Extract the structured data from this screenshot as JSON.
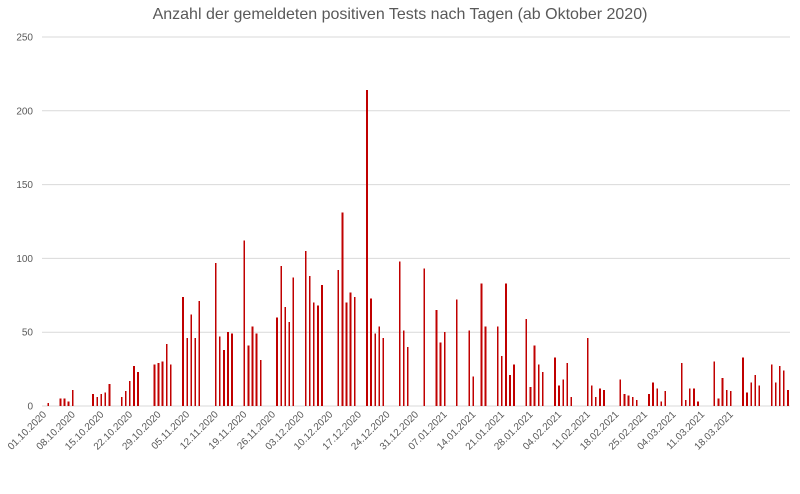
{
  "chart_data": {
    "type": "bar",
    "title": "Anzahl der gemeldeten positiven Tests nach Tagen (ab Oktober 2020)",
    "xlabel": "",
    "ylabel": "",
    "ylim": [
      0,
      250
    ],
    "y_ticks": [
      0,
      50,
      100,
      150,
      200,
      250
    ],
    "grid": true,
    "legend": "none",
    "bar_color": "#c00000",
    "x_tick_labels": [
      "01.10.2020",
      "08.10.2020",
      "15.10.2020",
      "22.10.2020",
      "29.10.2020",
      "05.11.2020",
      "12.11.2020",
      "19.11.2020",
      "26.11.2020",
      "03.12.2020",
      "10.12.2020",
      "17.12.2020",
      "24.12.2020",
      "31.12.2020",
      "07.01.2021",
      "14.01.2021",
      "21.01.2021",
      "28.01.2021",
      "04.02.2021",
      "11.02.2021",
      "18.02.2021",
      "25.02.2021",
      "04.03.2021",
      "11.03.2021",
      "18.03.2021"
    ],
    "values": [
      0,
      2,
      0,
      0,
      5,
      5,
      3,
      11,
      0,
      0,
      0,
      0,
      8,
      6,
      8,
      9,
      15,
      0,
      0,
      6,
      10,
      17,
      27,
      23,
      0,
      0,
      0,
      28,
      29,
      30,
      42,
      28,
      0,
      0,
      74,
      46,
      62,
      46,
      71,
      0,
      0,
      0,
      97,
      47,
      38,
      50,
      49,
      0,
      0,
      112,
      41,
      54,
      49,
      31,
      0,
      0,
      0,
      60,
      95,
      67,
      57,
      87,
      0,
      0,
      105,
      88,
      70,
      68,
      82,
      0,
      0,
      0,
      92,
      131,
      70,
      77,
      74,
      0,
      0,
      214,
      73,
      49,
      54,
      46,
      0,
      0,
      0,
      98,
      51,
      40,
      0,
      0,
      0,
      93,
      0,
      0,
      65,
      43,
      50,
      0,
      0,
      72,
      0,
      0,
      51,
      20,
      0,
      83,
      54,
      0,
      0,
      54,
      34,
      83,
      21,
      28,
      0,
      0,
      59,
      13,
      41,
      28,
      23,
      0,
      0,
      33,
      14,
      18,
      29,
      6,
      0,
      0,
      0,
      46,
      14,
      6,
      12,
      11,
      0,
      0,
      0,
      18,
      8,
      7,
      6,
      4,
      0,
      0,
      8,
      16,
      12,
      3,
      10,
      0,
      0,
      0,
      29,
      4,
      12,
      12,
      3,
      0,
      0,
      0,
      30,
      5,
      19,
      11,
      10,
      0,
      0,
      33,
      9,
      16,
      21,
      14,
      0,
      0,
      28,
      16,
      27,
      24,
      11
    ]
  }
}
